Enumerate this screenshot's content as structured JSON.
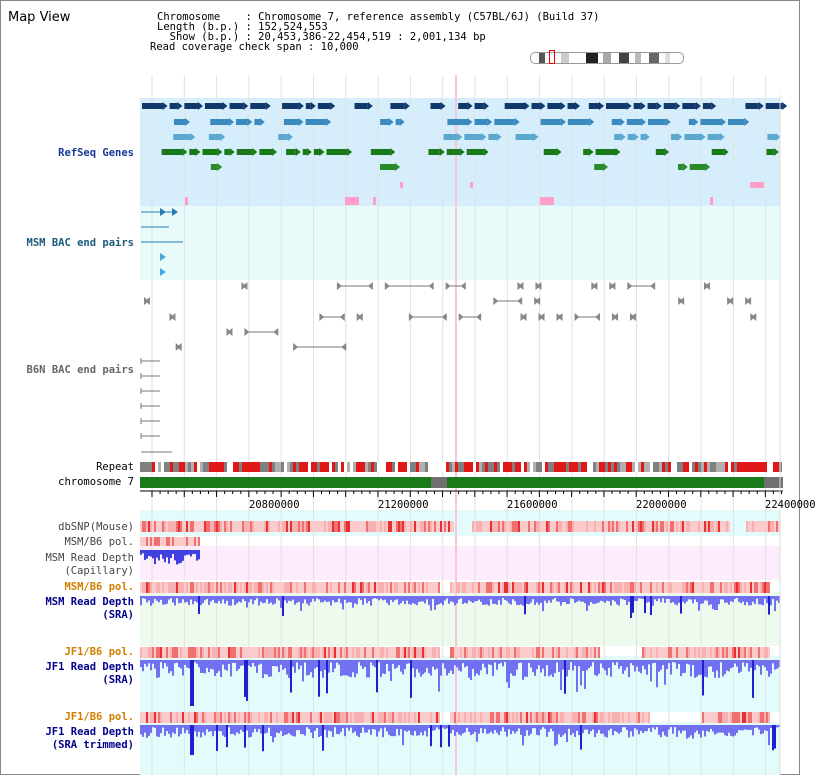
{
  "page": {
    "title": "Map View"
  },
  "info": {
    "chromosome_line": "Chromosome    : Chromosome 7, reference assembly (C57BL/6J) (Build 37)",
    "length_line": "Length (b.p.) : 152,524,553",
    "show_line": "  Show (b.p.) : 20,453,386-22,454,519 : 2,001,134 bp",
    "coverage_line": "Read coverage check span : 10,000"
  },
  "tracks": {
    "refseq": "RefSeq Genes",
    "msm_bac": "MSM BAC end pairs",
    "b6n_bac": "B6N BAC end pairs",
    "repeat": "Repeat",
    "chromosome": "chromosome 7",
    "dbsnp": "dbSNP(Mouse)",
    "msm_b6_pol_1": "MSM/B6 pol.",
    "msm_depth_cap_1": "MSM Read Depth",
    "msm_depth_cap_2": "(Capillary)",
    "msm_b6_pol_2": "MSM/B6 pol.",
    "msm_depth_sra_1": "MSM Read Depth",
    "msm_depth_sra_2": "(SRA)",
    "jf1_b6_pol_1": "JF1/B6 pol.",
    "jf1_depth_sra_1": "JF1 Read Depth",
    "jf1_depth_sra_2": "(SRA)",
    "jf1_b6_pol_2": "JF1/B6 pol.",
    "jf1_depth_trim_1": "JF1 Read Depth",
    "jf1_depth_trim_2": "(SRA trimmed)"
  },
  "axis": {
    "ticks": [
      "20800000",
      "21200000",
      "21600000",
      "22000000",
      "22400000"
    ]
  },
  "colors": {
    "refseq_bg": "#d6eefb",
    "bac_bg": "#e8fafa",
    "capillary_bg": "#fcecfc",
    "sra_bg": "#eefaee",
    "jf1_bg": "#e4fbfb",
    "chrom_green": "#1a7a1a",
    "track_blue_label": "#00008b",
    "track_orange_label": "#d08000",
    "depth_blue": "#6666ff"
  }
}
